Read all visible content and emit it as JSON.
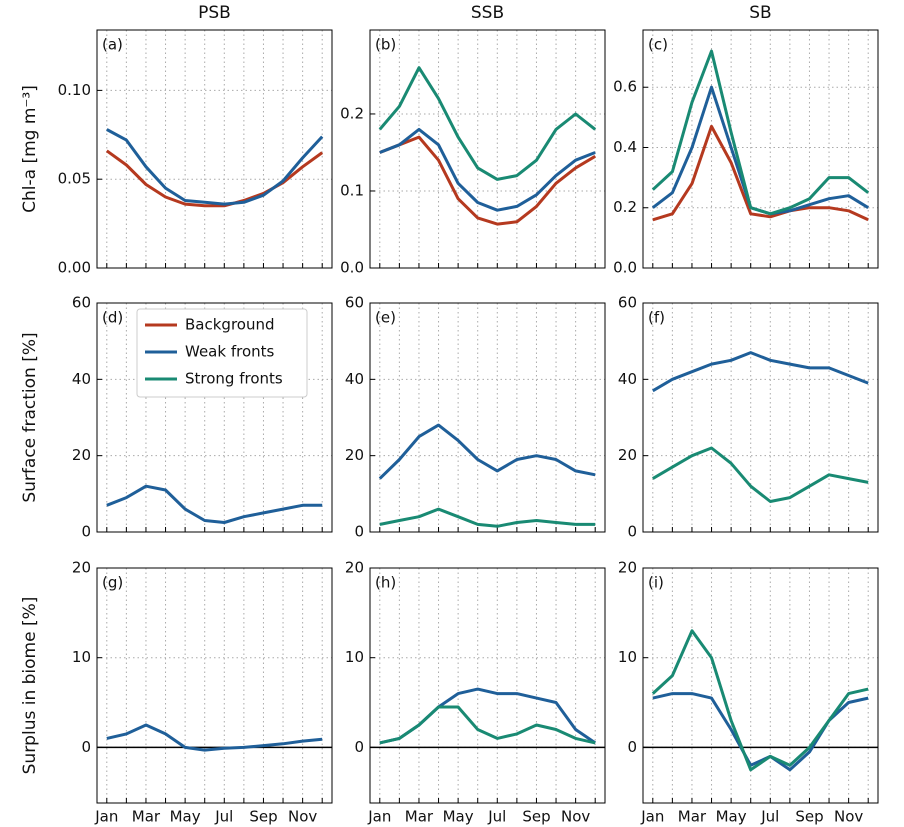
{
  "chart_data": [
    {
      "type": "line",
      "title": "PSB",
      "ylabel": "Chl-a [mg m⁻³]",
      "panel_label": "(a)",
      "ylim": [
        0,
        0.134
      ],
      "yticks": [
        {
          "value": 0,
          "label": "0.00"
        },
        {
          "value": 0.05,
          "label": "0.05"
        },
        {
          "value": 0.1,
          "label": "0.10"
        }
      ],
      "grid": true,
      "series": [
        {
          "color": "#b5391f",
          "values": [
            0.066,
            0.058,
            0.047,
            0.04,
            0.036,
            0.035,
            0.035,
            0.038,
            0.042,
            0.048,
            0.057,
            0.065
          ]
        },
        {
          "color": "#1f5f99",
          "values": [
            0.078,
            0.072,
            0.057,
            0.045,
            0.038,
            0.037,
            0.036,
            0.037,
            0.041,
            0.049,
            0.062,
            0.074
          ]
        }
      ]
    },
    {
      "type": "line",
      "title": "SSB",
      "panel_label": "(b)",
      "ylim": [
        0,
        0.309
      ],
      "yticks": [
        {
          "value": 0,
          "label": "0.0"
        },
        0.1,
        0.2
      ],
      "grid": true,
      "series": [
        {
          "color": "#b5391f",
          "values": [
            0.15,
            0.16,
            0.17,
            0.14,
            0.09,
            0.065,
            0.057,
            0.06,
            0.08,
            0.11,
            0.13,
            0.145
          ]
        },
        {
          "color": "#1f5f99",
          "values": [
            0.15,
            0.16,
            0.18,
            0.16,
            0.11,
            0.085,
            0.075,
            0.08,
            0.095,
            0.12,
            0.14,
            0.15
          ]
        },
        {
          "color": "#198a73",
          "values": [
            0.18,
            0.21,
            0.26,
            0.22,
            0.17,
            0.13,
            0.115,
            0.12,
            0.14,
            0.18,
            0.2,
            0.18
          ]
        }
      ]
    },
    {
      "type": "line",
      "title": "SB",
      "panel_label": "(c)",
      "ylim": [
        0,
        0.79
      ],
      "yticks": [
        {
          "value": 0,
          "label": "0.0"
        },
        0.2,
        0.4,
        0.6
      ],
      "grid": true,
      "series": [
        {
          "color": "#b5391f",
          "values": [
            0.16,
            0.18,
            0.28,
            0.47,
            0.35,
            0.18,
            0.17,
            0.19,
            0.2,
            0.2,
            0.19,
            0.16
          ]
        },
        {
          "color": "#1f5f99",
          "values": [
            0.2,
            0.25,
            0.4,
            0.6,
            0.4,
            0.2,
            0.18,
            0.19,
            0.21,
            0.23,
            0.24,
            0.2
          ]
        },
        {
          "color": "#198a73",
          "values": [
            0.26,
            0.32,
            0.55,
            0.72,
            0.45,
            0.2,
            0.18,
            0.2,
            0.23,
            0.3,
            0.3,
            0.25
          ]
        }
      ]
    },
    {
      "type": "line",
      "ylabel": "Surface fraction [%]",
      "panel_label": "(d)",
      "ylim": [
        0,
        60
      ],
      "yticks": [
        0,
        20,
        40,
        60
      ],
      "grid": true,
      "legend": "upper left",
      "series": [
        {
          "name": "Background",
          "color": "#b5391f",
          "values": [
            null,
            null,
            null,
            null,
            null,
            null,
            null,
            null,
            null,
            null,
            null,
            null
          ]
        },
        {
          "name": "Weak fronts",
          "color": "#1f5f99",
          "values": [
            7,
            9,
            12,
            11,
            6,
            3,
            2.5,
            4,
            5,
            6,
            7,
            7
          ]
        },
        {
          "name": "Strong fronts",
          "color": "#198a73",
          "values": [
            null,
            null,
            null,
            null,
            null,
            null,
            null,
            null,
            null,
            null,
            null,
            null
          ]
        }
      ]
    },
    {
      "type": "line",
      "panel_label": "(e)",
      "ylim": [
        0,
        60
      ],
      "yticks": [
        0,
        20,
        40,
        60
      ],
      "grid": true,
      "series": [
        {
          "color": "#1f5f99",
          "values": [
            14,
            19,
            25,
            28,
            24,
            19,
            16,
            19,
            20,
            19,
            16,
            15
          ]
        },
        {
          "color": "#198a73",
          "values": [
            2,
            3,
            4,
            6,
            4,
            2,
            1.5,
            2.5,
            3,
            2.5,
            2,
            2
          ]
        }
      ]
    },
    {
      "type": "line",
      "panel_label": "(f)",
      "ylim": [
        0,
        60
      ],
      "yticks": [
        0,
        20,
        40,
        60
      ],
      "grid": true,
      "series": [
        {
          "color": "#1f5f99",
          "values": [
            37,
            40,
            42,
            44,
            45,
            47,
            45,
            44,
            43,
            43,
            41,
            39
          ]
        },
        {
          "color": "#198a73",
          "values": [
            14,
            17,
            20,
            22,
            18,
            12,
            8,
            9,
            12,
            15,
            14,
            13
          ]
        }
      ]
    },
    {
      "type": "line",
      "ylabel": "Surplus in biome [%]",
      "panel_label": "(g)",
      "ylim": [
        -6.2,
        20
      ],
      "yticks": [
        0,
        10,
        20
      ],
      "grid": true,
      "zero_line": true,
      "categories": [
        "Jan",
        null,
        "Mar",
        null,
        "May",
        null,
        "Jul",
        null,
        "Sep",
        null,
        "Nov",
        null
      ],
      "series": [
        {
          "color": "#1f5f99",
          "values": [
            1,
            1.5,
            2.5,
            1.5,
            0,
            -0.3,
            -0.1,
            0,
            0.2,
            0.4,
            0.7,
            0.9
          ]
        }
      ]
    },
    {
      "type": "line",
      "panel_label": "(h)",
      "ylim": [
        -6.2,
        20
      ],
      "yticks": [
        0,
        10,
        20
      ],
      "grid": true,
      "zero_line": true,
      "categories": [
        "Jan",
        null,
        "Mar",
        null,
        "May",
        null,
        "Jul",
        null,
        "Sep",
        null,
        "Nov",
        null
      ],
      "series": [
        {
          "color": "#1f5f99",
          "values": [
            0.5,
            1,
            2.5,
            4.5,
            6,
            6.5,
            6,
            6,
            5.5,
            5,
            2,
            0.5
          ]
        },
        {
          "color": "#198a73",
          "values": [
            0.5,
            1,
            2.5,
            4.5,
            4.5,
            2,
            1,
            1.5,
            2.5,
            2,
            1,
            0.5
          ]
        }
      ]
    },
    {
      "type": "line",
      "panel_label": "(i)",
      "ylim": [
        -6.2,
        20
      ],
      "yticks": [
        0,
        10,
        20
      ],
      "grid": true,
      "zero_line": true,
      "categories": [
        "Jan",
        null,
        "Mar",
        null,
        "May",
        null,
        "Jul",
        null,
        "Sep",
        null,
        "Nov",
        null
      ],
      "series": [
        {
          "color": "#1f5f99",
          "values": [
            5.5,
            6,
            6,
            5.5,
            2,
            -2,
            -1,
            -2.5,
            -0.5,
            3,
            5,
            5.5
          ]
        },
        {
          "color": "#198a73",
          "values": [
            6,
            8,
            13,
            10,
            3,
            -2.5,
            -1,
            -2,
            0,
            3,
            6,
            6.5
          ]
        }
      ]
    }
  ]
}
